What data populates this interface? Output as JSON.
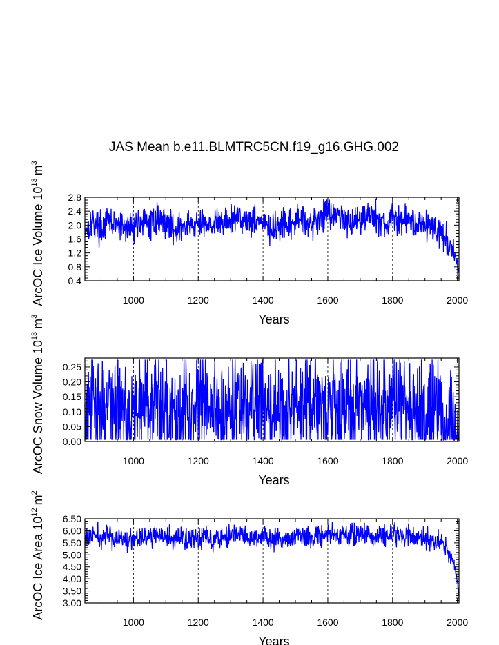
{
  "title": "JAS Mean b.e11.BLMTRC5CN.f19_g16.GHG.002",
  "line_color": "#0000ff",
  "chart_data": [
    {
      "type": "line",
      "xlabel": "Years",
      "ylabel_main": "ArcOC Ice Volume 10",
      "ylabel_exp": "13",
      "ylabel_unit": "m",
      "ylabel_unit_exp": "3",
      "xlim": [
        850,
        2005
      ],
      "ylim": [
        0.4,
        2.8
      ],
      "xticks": [
        1000,
        1200,
        1400,
        1600,
        1800,
        2000
      ],
      "yticks": [
        "0.4",
        "0.8",
        "1.2",
        "1.6",
        "2.0",
        "2.4",
        "2.8"
      ],
      "grid_x": [
        1000,
        1200,
        1400,
        1600,
        1800
      ],
      "series": [
        {
          "name": "Ice Volume",
          "x": [
            850,
            875,
            900,
            925,
            950,
            975,
            1000,
            1025,
            1050,
            1075,
            1100,
            1125,
            1150,
            1175,
            1200,
            1225,
            1250,
            1275,
            1300,
            1325,
            1350,
            1375,
            1400,
            1425,
            1450,
            1475,
            1500,
            1525,
            1550,
            1575,
            1600,
            1625,
            1650,
            1675,
            1700,
            1725,
            1750,
            1775,
            1800,
            1825,
            1850,
            1875,
            1900,
            1925,
            1950,
            1965,
            1975,
            1985,
            1995,
            2000,
            2005
          ],
          "values": [
            1.9,
            2.1,
            1.9,
            2.1,
            2.0,
            1.9,
            2.0,
            2.1,
            2.0,
            2.2,
            2.1,
            1.9,
            1.9,
            2.0,
            2.0,
            2.1,
            2.0,
            2.1,
            2.1,
            2.3,
            2.1,
            2.2,
            2.1,
            1.8,
            2.0,
            1.9,
            2.1,
            2.2,
            2.0,
            2.2,
            2.4,
            2.3,
            2.2,
            2.1,
            2.2,
            2.3,
            2.2,
            2.0,
            2.2,
            2.1,
            2.2,
            2.0,
            2.1,
            1.9,
            1.8,
            1.6,
            1.4,
            1.2,
            1.0,
            0.8,
            0.6
          ]
        }
      ]
    },
    {
      "type": "line",
      "xlabel": "Years",
      "ylabel_main": "ArcOC Snow Volume 10",
      "ylabel_exp": "13",
      "ylabel_unit": "m",
      "ylabel_unit_exp": "3",
      "xlim": [
        850,
        2005
      ],
      "ylim": [
        0.0,
        0.28
      ],
      "xticks": [
        1000,
        1200,
        1400,
        1600,
        1800,
        2000
      ],
      "yticks": [
        "0.00",
        "0.05",
        "0.10",
        "0.15",
        "0.20",
        "0.25"
      ],
      "grid_x": [
        1000,
        1200,
        1400,
        1600,
        1800
      ],
      "series": [
        {
          "name": "Snow Volume",
          "x": [
            850,
            875,
            900,
            925,
            950,
            975,
            1000,
            1025,
            1050,
            1075,
            1100,
            1125,
            1150,
            1175,
            1200,
            1225,
            1250,
            1275,
            1300,
            1325,
            1350,
            1375,
            1400,
            1425,
            1450,
            1475,
            1500,
            1525,
            1550,
            1575,
            1600,
            1625,
            1650,
            1675,
            1700,
            1725,
            1750,
            1775,
            1800,
            1825,
            1850,
            1875,
            1900,
            1925,
            1950,
            1965,
            1975,
            1985,
            1995,
            2000,
            2005
          ],
          "values": [
            0.06,
            0.12,
            0.11,
            0.12,
            0.1,
            0.11,
            0.11,
            0.12,
            0.13,
            0.11,
            0.12,
            0.1,
            0.11,
            0.12,
            0.12,
            0.12,
            0.11,
            0.1,
            0.12,
            0.14,
            0.1,
            0.1,
            0.13,
            0.11,
            0.09,
            0.1,
            0.12,
            0.11,
            0.12,
            0.13,
            0.13,
            0.12,
            0.11,
            0.12,
            0.12,
            0.11,
            0.12,
            0.11,
            0.12,
            0.13,
            0.12,
            0.11,
            0.12,
            0.1,
            0.09,
            0.08,
            0.07,
            0.05,
            0.04,
            0.03,
            0.01
          ]
        }
      ]
    },
    {
      "type": "line",
      "xlabel": "Years",
      "ylabel_main": "ArcOC Ice Area 10",
      "ylabel_exp": "12",
      "ylabel_unit": "m",
      "ylabel_unit_exp": "2",
      "xlim": [
        850,
        2005
      ],
      "ylim": [
        3.0,
        6.5
      ],
      "xticks": [
        1000,
        1200,
        1400,
        1600,
        1800,
        2000
      ],
      "yticks": [
        "3.00",
        "3.50",
        "4.00",
        "4.50",
        "5.00",
        "5.50",
        "6.00",
        "6.50"
      ],
      "grid_x": [
        1000,
        1200,
        1400,
        1600,
        1800
      ],
      "series": [
        {
          "name": "Ice Area",
          "x": [
            850,
            875,
            900,
            925,
            950,
            975,
            1000,
            1025,
            1050,
            1075,
            1100,
            1125,
            1150,
            1175,
            1200,
            1225,
            1250,
            1275,
            1300,
            1325,
            1350,
            1375,
            1400,
            1425,
            1450,
            1475,
            1500,
            1525,
            1550,
            1575,
            1600,
            1625,
            1650,
            1675,
            1700,
            1725,
            1750,
            1775,
            1800,
            1825,
            1850,
            1875,
            1900,
            1925,
            1950,
            1965,
            1975,
            1985,
            1995,
            2000,
            2005
          ],
          "values": [
            5.6,
            5.8,
            5.7,
            5.8,
            5.7,
            5.6,
            5.7,
            5.8,
            5.7,
            5.8,
            5.7,
            5.6,
            5.7,
            5.7,
            5.7,
            5.8,
            5.7,
            5.8,
            5.8,
            5.9,
            5.7,
            5.7,
            5.8,
            5.6,
            5.6,
            5.7,
            5.7,
            5.8,
            5.7,
            5.8,
            5.9,
            5.8,
            5.8,
            5.8,
            5.9,
            5.8,
            5.8,
            5.8,
            5.8,
            5.8,
            5.8,
            5.7,
            5.7,
            5.6,
            5.5,
            5.3,
            5.0,
            4.7,
            4.3,
            3.9,
            3.3
          ]
        }
      ]
    }
  ]
}
